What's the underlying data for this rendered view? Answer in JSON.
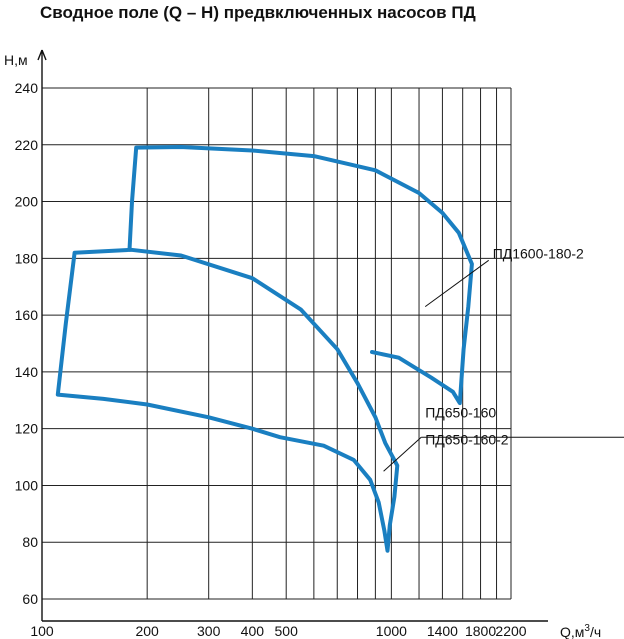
{
  "chart_data": {
    "type": "line",
    "title": "Сводное поле (Q – H) предвключенных насосов ПД",
    "ylabel": "Н,м",
    "xlabel_base": "Q,м",
    "xlabel_sup": "3",
    "xlabel_tail": "/ч",
    "x_scale": "log",
    "xlim": [
      100,
      2200
    ],
    "ylim": [
      60,
      240
    ],
    "grid": true,
    "x_tick_labels": [
      {
        "value": 100,
        "label": "100"
      },
      {
        "value": 200,
        "label": "200"
      },
      {
        "value": 300,
        "label": "300"
      },
      {
        "value": 400,
        "label": "400"
      },
      {
        "value": 500,
        "label": "500"
      },
      {
        "value": 1000,
        "label": "1000"
      },
      {
        "value": 1400,
        "label": "1400"
      },
      {
        "value": 1800,
        "label": "1800"
      },
      {
        "value": 2200,
        "label": "2200"
      }
    ],
    "x_gridlines": [
      100,
      200,
      300,
      400,
      500,
      600,
      700,
      800,
      900,
      1000,
      1200,
      1400,
      1600,
      1800,
      2000,
      2200
    ],
    "y_ticks": [
      60,
      80,
      100,
      120,
      140,
      160,
      180,
      200,
      220,
      240
    ],
    "line_color": "#1a7fc1",
    "series": [
      {
        "name": "ПД1600-180-2",
        "points": [
          [
            178,
            183
          ],
          [
            181,
            200
          ],
          [
            186,
            219
          ],
          [
            250,
            219.2
          ],
          [
            400,
            218
          ],
          [
            600,
            216
          ],
          [
            900,
            211
          ],
          [
            1200,
            203
          ],
          [
            1400,
            196
          ],
          [
            1560,
            189
          ],
          [
            1700,
            178
          ],
          [
            1660,
            163
          ],
          [
            1610,
            148
          ],
          [
            1580,
            134
          ],
          [
            1570,
            129
          ],
          [
            1500,
            133
          ],
          [
            1300,
            138
          ],
          [
            1150,
            142
          ],
          [
            1050,
            145
          ],
          [
            880,
            147
          ]
        ]
      },
      {
        "name": "ПД650-160 / ПД650-160-2",
        "points": [
          [
            111,
            132
          ],
          [
            117,
            157
          ],
          [
            124,
            182
          ],
          [
            180,
            183
          ],
          [
            250,
            181
          ],
          [
            400,
            173
          ],
          [
            550,
            162
          ],
          [
            700,
            148
          ],
          [
            800,
            136
          ],
          [
            900,
            124
          ],
          [
            960,
            115
          ],
          [
            1040,
            107
          ],
          [
            1020,
            96
          ],
          [
            990,
            86
          ],
          [
            975,
            77
          ],
          [
            955,
            84
          ],
          [
            920,
            94
          ],
          [
            870,
            102
          ],
          [
            780,
            109
          ],
          [
            640,
            114
          ],
          [
            480,
            117
          ],
          [
            400,
            120
          ],
          [
            300,
            124
          ],
          [
            200,
            128.5
          ],
          [
            150,
            130.5
          ],
          [
            111,
            132
          ]
        ]
      }
    ],
    "annotations": [
      {
        "text": "ПД1600-180-2",
        "x": 1950,
        "y": 180,
        "points_to": [
          1250,
          163
        ]
      },
      {
        "text": "ПД650-160",
        "x": 1250,
        "y": 124,
        "points_to": [
          950,
          105
        ]
      },
      {
        "text": "ПД650-160-2",
        "x": 1250,
        "y": 114.5,
        "points_to": [
          950,
          105
        ]
      }
    ]
  }
}
